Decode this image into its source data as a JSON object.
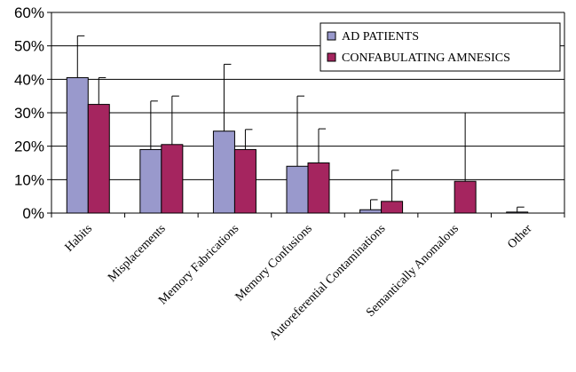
{
  "chart_data": {
    "type": "bar",
    "title": "",
    "xlabel": "",
    "ylabel": "",
    "ylim": [
      0,
      0.6
    ],
    "yticks": [
      "0%",
      "10%",
      "20%",
      "30%",
      "40%",
      "50%",
      "60%"
    ],
    "grid": true,
    "legend_position": "top-right",
    "categories": [
      "Habits",
      "Misplacements",
      "Memory Fabrications",
      "Memory Confusions",
      "Autoreferential Contaminations",
      "Semantically Anomalous",
      "Other"
    ],
    "series": [
      {
        "name": "AD PATIENTS",
        "color": "#9999cc",
        "values": [
          0.405,
          0.19,
          0.245,
          0.14,
          0.01,
          0.0,
          0.003
        ],
        "error_upper": [
          0.53,
          0.335,
          0.445,
          0.35,
          0.04,
          0.0,
          0.018
        ]
      },
      {
        "name": "CONFABULATING AMNESICS",
        "color": "#a5255f",
        "values": [
          0.325,
          0.205,
          0.19,
          0.15,
          0.035,
          0.095,
          0.0
        ],
        "error_upper": [
          0.405,
          0.35,
          0.25,
          0.252,
          0.128,
          0.3,
          0.0
        ]
      }
    ]
  }
}
